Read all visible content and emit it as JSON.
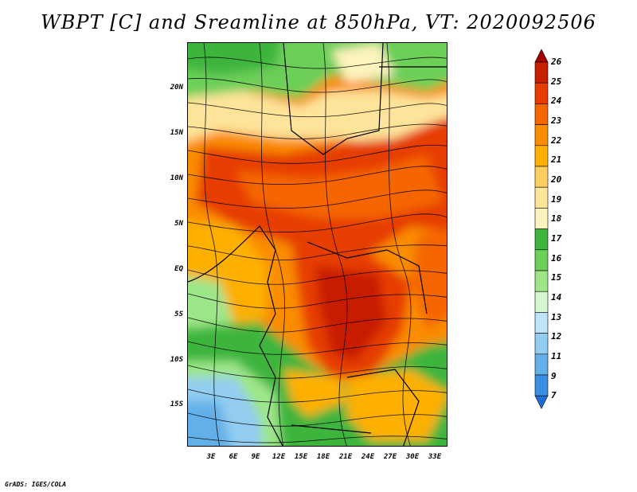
{
  "title": "WBPT [C] and Sreamline at 850hPa, VT: 2020092506",
  "y_axis": {
    "labels": [
      "20N",
      "15N",
      "10N",
      "5N",
      "EQ",
      "5S",
      "10S",
      "15S"
    ]
  },
  "x_axis": {
    "labels": [
      "3E",
      "6E",
      "9E",
      "12E",
      "15E",
      "18E",
      "21E",
      "24E",
      "27E",
      "30E",
      "33E"
    ]
  },
  "colorbar": {
    "labels": [
      "26",
      "25",
      "24",
      "23",
      "22",
      "21",
      "20",
      "19",
      "18",
      "17",
      "16",
      "15",
      "14",
      "13",
      "12",
      "11",
      "9",
      "7"
    ],
    "colors": [
      "#a50000",
      "#c81e00",
      "#e63c00",
      "#f56600",
      "#fa8c00",
      "#fdb000",
      "#fcce60",
      "#fde49a",
      "#fcf3bd",
      "#3db53d",
      "#6ccf59",
      "#9ee68a",
      "#d7f7cf",
      "#bfe3f8",
      "#92cdf0",
      "#64b0e8",
      "#3c8fe0",
      "#1d6fd8"
    ]
  },
  "footer": "GrADS: IGES/COLA"
}
